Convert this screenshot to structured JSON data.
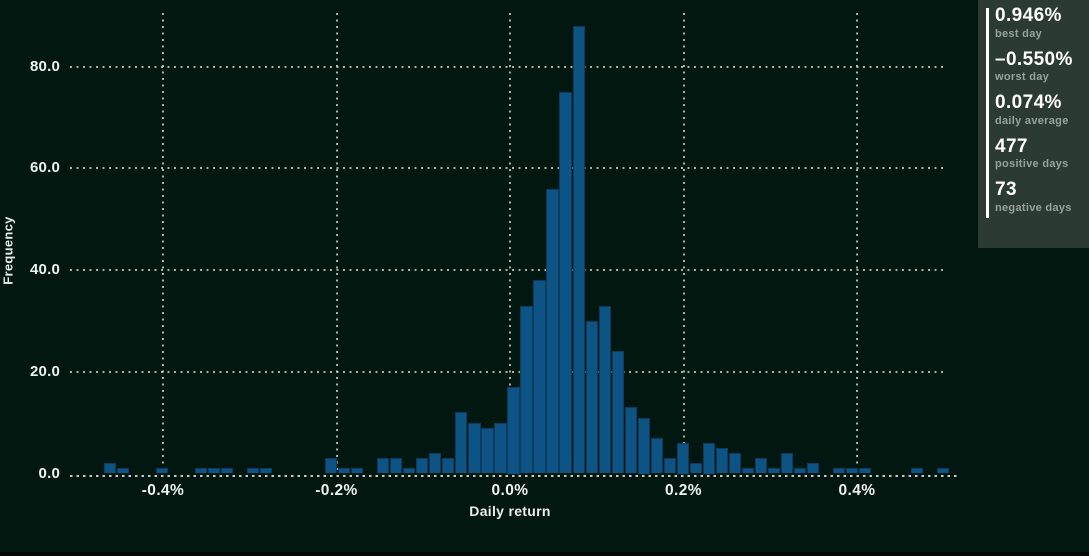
{
  "chart_data": {
    "type": "bar",
    "subtype": "histogram",
    "title": "",
    "xlabel": "Daily return",
    "ylabel": "Frequency",
    "bin_width_pct": 0.015,
    "first_bin_left_pct": -0.468,
    "counts": [
      2,
      1,
      0,
      0,
      1,
      0,
      0,
      1,
      1,
      1,
      0,
      1,
      1,
      0,
      0,
      0,
      0,
      3,
      1,
      1,
      0,
      3,
      3,
      1,
      3,
      4,
      3,
      12,
      10,
      9,
      10,
      17,
      33,
      38,
      56,
      75,
      88,
      30,
      33,
      24,
      13,
      11,
      7,
      3,
      6,
      2,
      6,
      5,
      4,
      1,
      3,
      1,
      4,
      1,
      2,
      0,
      1,
      1,
      1,
      0,
      0,
      0,
      1,
      0,
      1
    ],
    "x_ticks": [
      {
        "value": -0.4,
        "label": "-0.4%"
      },
      {
        "value": -0.2,
        "label": "-0.2%"
      },
      {
        "value": 0.0,
        "label": "0.0%"
      },
      {
        "value": 0.2,
        "label": "0.2%"
      },
      {
        "value": 0.4,
        "label": "0.4%"
      }
    ],
    "y_ticks": [
      {
        "value": 0,
        "label": "0.0"
      },
      {
        "value": 20,
        "label": "20.0"
      },
      {
        "value": 40,
        "label": "40.0"
      },
      {
        "value": 60,
        "label": "60.0"
      },
      {
        "value": 80,
        "label": "80.0"
      }
    ],
    "xlim_pct": [
      -0.51,
      0.52
    ],
    "ylim": [
      0,
      90
    ],
    "grid": "dotted",
    "legend": "none"
  },
  "stats_panel": {
    "items": [
      {
        "value": "0.946%",
        "label": "best day"
      },
      {
        "value": "–0.550%",
        "label": "worst day"
      },
      {
        "value": "0.074%",
        "label": "daily average"
      },
      {
        "value": "477",
        "label": "positive days"
      },
      {
        "value": "73",
        "label": "negative days"
      }
    ]
  },
  "colors": {
    "background": "#031711",
    "bar_fill": "#0d5383",
    "bar_border": "#0a3c61",
    "grid_dot": "#ced9d2",
    "tick_text": "#eef2ef",
    "panel_bg": "#2c3a34",
    "panel_accent": "#ffffff",
    "panel_value_text": "#ffffff",
    "panel_label_text": "#97a29b"
  }
}
